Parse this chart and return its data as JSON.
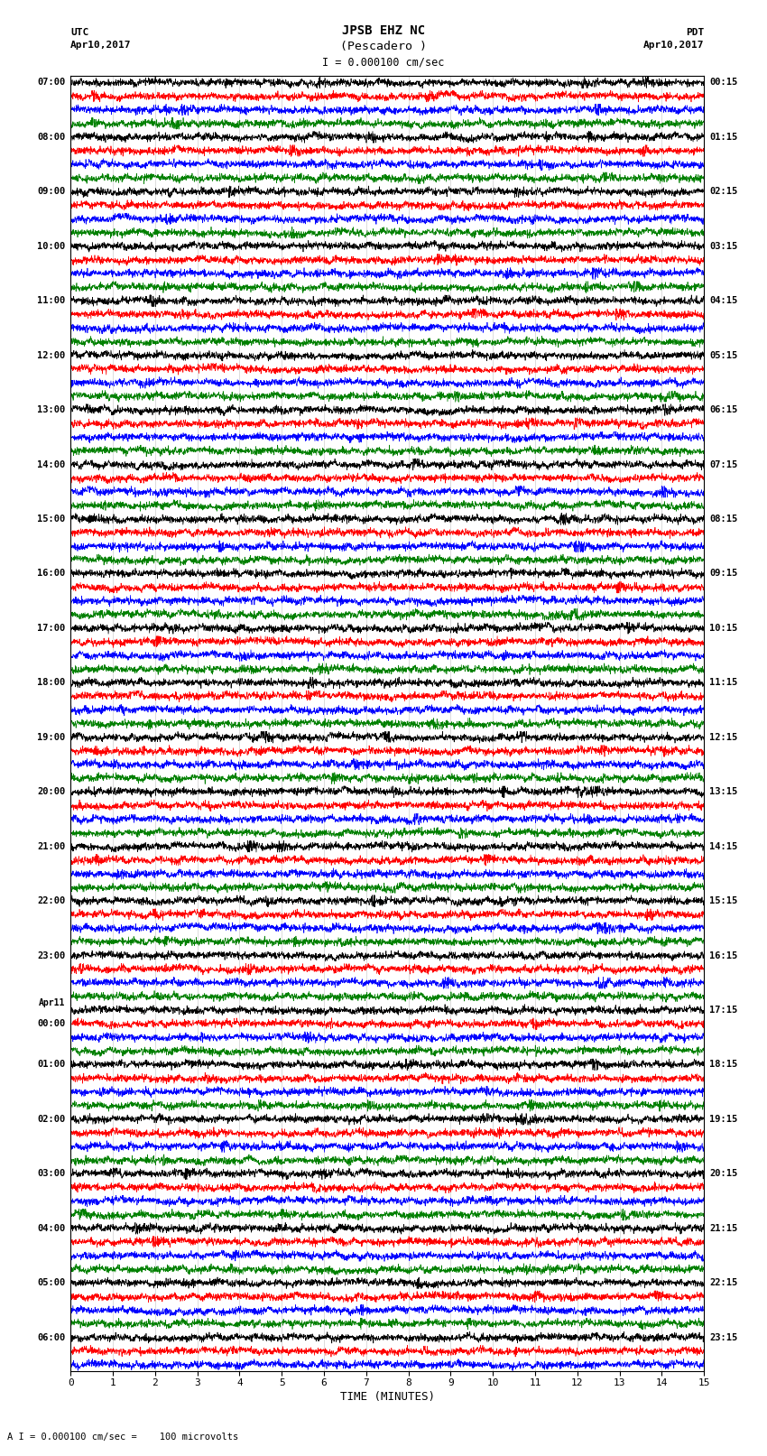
{
  "title_line1": "JPSB EHZ NC",
  "title_line2": "(Pescadero )",
  "scale_label": "I = 0.000100 cm/sec",
  "footer_label": "A I = 0.000100 cm/sec =    100 microvolts",
  "utc_label": "UTC",
  "utc_date": "Apr10,2017",
  "pdt_label": "PDT",
  "pdt_date": "Apr10,2017",
  "xlabel": "TIME (MINUTES)",
  "left_times": [
    "07:00",
    "",
    "",
    "",
    "08:00",
    "",
    "",
    "",
    "09:00",
    "",
    "",
    "",
    "10:00",
    "",
    "",
    "",
    "11:00",
    "",
    "",
    "",
    "12:00",
    "",
    "",
    "",
    "13:00",
    "",
    "",
    "",
    "14:00",
    "",
    "",
    "",
    "15:00",
    "",
    "",
    "",
    "16:00",
    "",
    "",
    "",
    "17:00",
    "",
    "",
    "",
    "18:00",
    "",
    "",
    "",
    "19:00",
    "",
    "",
    "",
    "20:00",
    "",
    "",
    "",
    "21:00",
    "",
    "",
    "",
    "22:00",
    "",
    "",
    "",
    "23:00",
    "",
    "",
    "",
    "Apr11",
    "00:00",
    "",
    "",
    "01:00",
    "",
    "",
    "",
    "02:00",
    "",
    "",
    "",
    "03:00",
    "",
    "",
    "",
    "04:00",
    "",
    "",
    "",
    "05:00",
    "",
    "",
    "",
    "06:00",
    "",
    ""
  ],
  "right_times": [
    "00:15",
    "",
    "",
    "",
    "01:15",
    "",
    "",
    "",
    "02:15",
    "",
    "",
    "",
    "03:15",
    "",
    "",
    "",
    "04:15",
    "",
    "",
    "",
    "05:15",
    "",
    "",
    "",
    "06:15",
    "",
    "",
    "",
    "07:15",
    "",
    "",
    "",
    "08:15",
    "",
    "",
    "",
    "09:15",
    "",
    "",
    "",
    "10:15",
    "",
    "",
    "",
    "11:15",
    "",
    "",
    "",
    "12:15",
    "",
    "",
    "",
    "13:15",
    "",
    "",
    "",
    "14:15",
    "",
    "",
    "",
    "15:15",
    "",
    "",
    "",
    "16:15",
    "",
    "",
    "",
    "17:15",
    "",
    "",
    "",
    "18:15",
    "",
    "",
    "",
    "19:15",
    "",
    "",
    "",
    "20:15",
    "",
    "",
    "",
    "21:15",
    "",
    "",
    "",
    "22:15",
    "",
    "",
    "",
    "23:15",
    "",
    ""
  ],
  "n_rows": 95,
  "colors_cycle": [
    "black",
    "red",
    "blue",
    "green"
  ],
  "bg_color": "white",
  "trace_amplitude": 0.42,
  "noise_amplitude": 0.12,
  "minutes_per_row": 15,
  "samples_per_row": 2700,
  "xlim": [
    0,
    15
  ],
  "xticks": [
    0,
    1,
    2,
    3,
    4,
    5,
    6,
    7,
    8,
    9,
    10,
    11,
    12,
    13,
    14,
    15
  ],
  "grid_color": "#888888",
  "grid_alpha": 0.5,
  "grid_lw": 0.4,
  "trace_lw": 0.5
}
